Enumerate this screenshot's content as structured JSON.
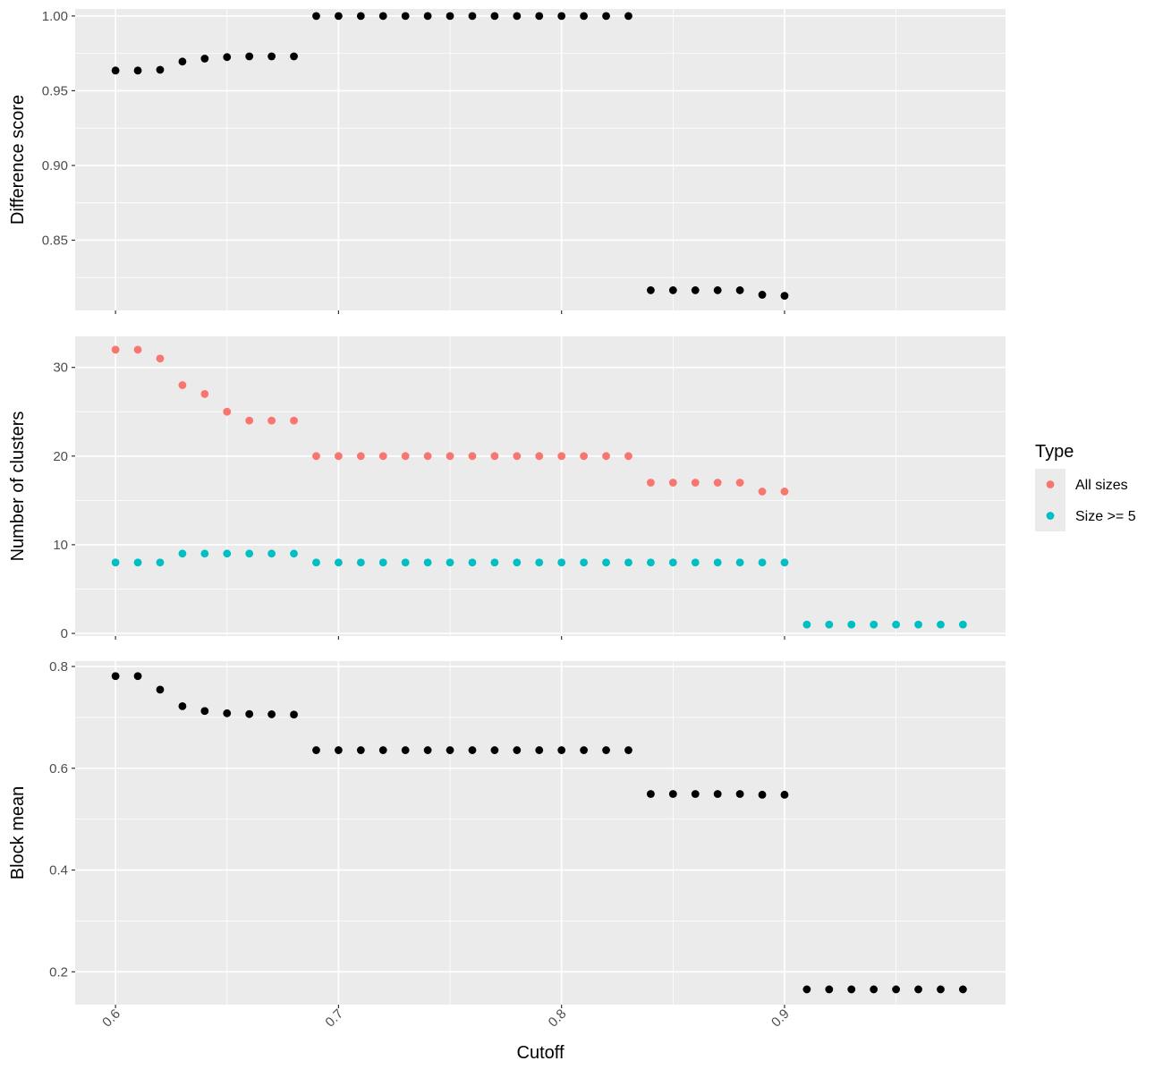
{
  "chart_data": [
    {
      "type": "scatter",
      "ylabel": "Difference score",
      "ylim": [
        0.803,
        1.0047
      ],
      "yticks": [
        "0.85",
        "0.90",
        "0.95",
        "1.00"
      ],
      "series": [
        {
          "color": "#000000",
          "x": [
            0.6,
            0.61,
            0.62,
            0.63,
            0.64,
            0.65,
            0.66,
            0.67,
            0.68,
            0.69,
            0.7,
            0.71,
            0.72,
            0.73,
            0.74,
            0.75,
            0.76,
            0.77,
            0.78,
            0.79,
            0.8,
            0.81,
            0.82,
            0.83,
            0.84,
            0.85,
            0.86,
            0.87,
            0.88,
            0.89,
            0.9
          ],
          "y": [
            0.9635,
            0.9635,
            0.964,
            0.9695,
            0.9715,
            0.9725,
            0.973,
            0.973,
            0.973,
            1.0,
            1.0,
            1.0,
            1.0,
            1.0,
            1.0,
            1.0,
            1.0,
            1.0,
            1.0,
            1.0,
            1.0,
            1.0,
            1.0,
            1.0,
            0.8165,
            0.8165,
            0.8165,
            0.8165,
            0.8165,
            0.8135,
            0.8128
          ]
        }
      ]
    },
    {
      "type": "scatter",
      "ylabel": "Number of clusters",
      "ylim": [
        -0.3,
        33.5
      ],
      "yticks": [
        "0",
        "10",
        "20",
        "30"
      ],
      "legend": {
        "title": "Type",
        "position": "right"
      },
      "series": [
        {
          "name": "All sizes",
          "color": "#F8766D",
          "x": [
            0.6,
            0.61,
            0.62,
            0.63,
            0.64,
            0.65,
            0.66,
            0.67,
            0.68,
            0.69,
            0.7,
            0.71,
            0.72,
            0.73,
            0.74,
            0.75,
            0.76,
            0.77,
            0.78,
            0.79,
            0.8,
            0.81,
            0.82,
            0.83,
            0.84,
            0.85,
            0.86,
            0.87,
            0.88,
            0.89,
            0.9
          ],
          "y": [
            32,
            32,
            31,
            28,
            27,
            25,
            24,
            24,
            24,
            20,
            20,
            20,
            20,
            20,
            20,
            20,
            20,
            20,
            20,
            20,
            20,
            20,
            20,
            20,
            17,
            17,
            17,
            17,
            17,
            16,
            16
          ]
        },
        {
          "name": "Size >= 5",
          "color": "#00BFC4",
          "x": [
            0.6,
            0.61,
            0.62,
            0.63,
            0.64,
            0.65,
            0.66,
            0.67,
            0.68,
            0.69,
            0.7,
            0.71,
            0.72,
            0.73,
            0.74,
            0.75,
            0.76,
            0.77,
            0.78,
            0.79,
            0.8,
            0.81,
            0.82,
            0.83,
            0.84,
            0.85,
            0.86,
            0.87,
            0.88,
            0.89,
            0.9,
            0.91,
            0.92,
            0.93,
            0.94,
            0.95,
            0.96,
            0.97,
            0.98
          ],
          "y": [
            8,
            8,
            8,
            9,
            9,
            9,
            9,
            9,
            9,
            8,
            8,
            8,
            8,
            8,
            8,
            8,
            8,
            8,
            8,
            8,
            8,
            8,
            8,
            8,
            8,
            8,
            8,
            8,
            8,
            8,
            8,
            1,
            1,
            1,
            1,
            1,
            1,
            1,
            1
          ]
        }
      ]
    },
    {
      "type": "scatter",
      "xlabel": "Cutoff",
      "ylabel": "Block mean",
      "ylim": [
        0.1355,
        0.8105
      ],
      "yticks": [
        "0.2",
        "0.4",
        "0.6",
        "0.8"
      ],
      "series": [
        {
          "color": "#000000",
          "x": [
            0.6,
            0.61,
            0.62,
            0.63,
            0.64,
            0.65,
            0.66,
            0.67,
            0.68,
            0.69,
            0.7,
            0.71,
            0.72,
            0.73,
            0.74,
            0.75,
            0.76,
            0.77,
            0.78,
            0.79,
            0.8,
            0.81,
            0.82,
            0.83,
            0.84,
            0.85,
            0.86,
            0.87,
            0.88,
            0.89,
            0.9,
            0.91,
            0.92,
            0.93,
            0.94,
            0.95,
            0.96,
            0.97,
            0.98
          ],
          "y": [
            0.781,
            0.781,
            0.7545,
            0.722,
            0.7125,
            0.708,
            0.7065,
            0.706,
            0.7055,
            0.6355,
            0.6355,
            0.6355,
            0.6355,
            0.6355,
            0.6355,
            0.6355,
            0.6355,
            0.6355,
            0.6355,
            0.6355,
            0.6355,
            0.6355,
            0.6355,
            0.6355,
            0.5495,
            0.5495,
            0.5495,
            0.5495,
            0.5495,
            0.548,
            0.548,
            0.1655,
            0.1655,
            0.1655,
            0.1655,
            0.1655,
            0.1655,
            0.1655,
            0.1655
          ]
        }
      ]
    }
  ],
  "x_axis": {
    "xlim": [
      0.5819,
      0.9991
    ],
    "xticks": [
      "0.6",
      "0.7",
      "0.8",
      "0.9"
    ]
  }
}
